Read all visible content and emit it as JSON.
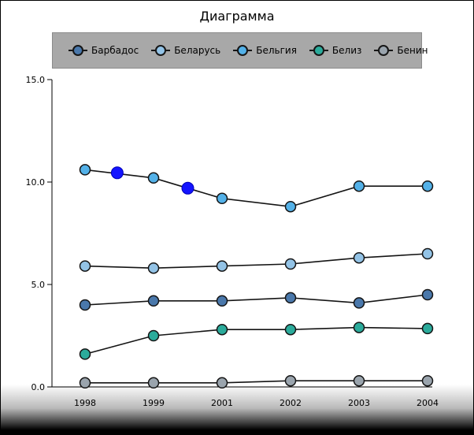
{
  "window": {
    "title": "Диаграмма"
  },
  "legend": {
    "items": [
      {
        "label": "Барбадос",
        "color": "#4a78ab"
      },
      {
        "label": "Беларусь",
        "color": "#93c3e6"
      },
      {
        "label": "Бельгия",
        "color": "#53b1e8"
      },
      {
        "label": "Белиз",
        "color": "#2bab9b"
      },
      {
        "label": "Бенин",
        "color": "#9aa4ad"
      }
    ]
  },
  "chart_data": {
    "type": "line",
    "title": "Диаграмма",
    "categories": [
      "1998",
      "1999",
      "2001",
      "2002",
      "2003",
      "2004"
    ],
    "xlabel": "",
    "ylabel": "",
    "ylim": [
      0,
      15
    ],
    "ytick_labels": [
      "0.0",
      "5.0",
      "10.0",
      "15.0"
    ],
    "ytick_values": [
      0,
      5,
      10,
      15
    ],
    "grid": false,
    "legend_position": "top",
    "line_color": "#141414",
    "series": [
      {
        "name": "Барбадос",
        "color": "#4a78ab",
        "values": [
          4.0,
          4.2,
          4.2,
          4.35,
          4.1,
          4.5
        ]
      },
      {
        "name": "Беларусь",
        "color": "#93c3e6",
        "values": [
          5.9,
          5.8,
          5.9,
          6.0,
          6.3,
          6.5
        ]
      },
      {
        "name": "Бельгия",
        "color": "#53b1e8",
        "values": [
          10.6,
          10.2,
          9.2,
          8.8,
          9.8,
          9.8
        ]
      },
      {
        "name": "Белиз",
        "color": "#2bab9b",
        "values": [
          1.6,
          2.5,
          2.8,
          2.8,
          2.9,
          2.85
        ]
      },
      {
        "name": "Бенин",
        "color": "#9aa4ad",
        "values": [
          0.2,
          0.2,
          0.2,
          0.3,
          0.3,
          0.3
        ]
      }
    ],
    "highlighted_points": [
      {
        "series": "Бельгия",
        "x_index": 0.47,
        "value": 10.45,
        "color": "#1414ff"
      },
      {
        "series": "Бельгия",
        "x_index": 1.5,
        "value": 9.7,
        "color": "#1414ff"
      }
    ]
  }
}
